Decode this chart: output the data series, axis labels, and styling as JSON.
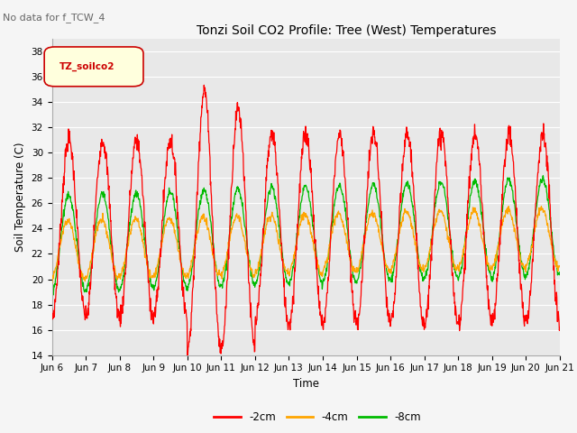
{
  "title": "Tonzi Soil CO2 Profile: Tree (West) Temperatures",
  "subtitle": "No data for f_TCW_4",
  "ylabel": "Soil Temperature (C)",
  "xlabel": "Time",
  "legend_label": "TZ_soilco2",
  "series_labels": [
    "-2cm",
    "-4cm",
    "-8cm"
  ],
  "series_colors": [
    "#ff0000",
    "#ffa500",
    "#00bb00"
  ],
  "ylim": [
    14,
    39
  ],
  "yticks": [
    14,
    16,
    18,
    20,
    22,
    24,
    26,
    28,
    30,
    32,
    34,
    36,
    38
  ],
  "xtick_labels": [
    "Jun 6",
    "Jun 7",
    "Jun 8",
    "Jun 9",
    "Jun 10",
    "Jun 11",
    "Jun 12",
    "Jun 13",
    "Jun 14",
    "Jun 15",
    "Jun 16",
    "Jun 17",
    "Jun 18",
    "Jun 19",
    "Jun 20",
    "Jun 21"
  ],
  "plot_bg_color": "#e8e8e8",
  "grid_color": "#ffffff",
  "n_days": 15,
  "points_per_day": 96
}
